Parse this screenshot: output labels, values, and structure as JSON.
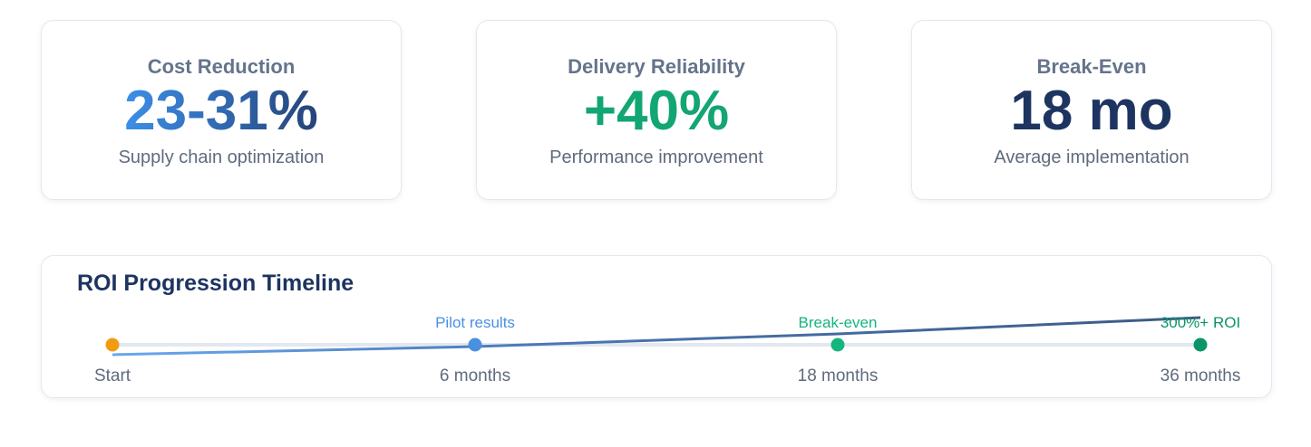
{
  "cards": [
    {
      "title": "Cost Reduction",
      "value": "23-31%",
      "subtitle": "Supply chain optimization"
    },
    {
      "title": "Delivery Reliability",
      "value": "+40%",
      "subtitle": "Performance improvement"
    },
    {
      "title": "Break-Even",
      "value": "18 mo",
      "subtitle": "Average implementation"
    }
  ],
  "timeline": {
    "title": "ROI Progression Timeline",
    "milestones": [
      {
        "label": "Start"
      },
      {
        "event": "Pilot results",
        "label": "6 months"
      },
      {
        "event": "Break-even",
        "label": "18 months"
      },
      {
        "event": "300%+ ROI",
        "label": "36 months"
      }
    ]
  }
}
